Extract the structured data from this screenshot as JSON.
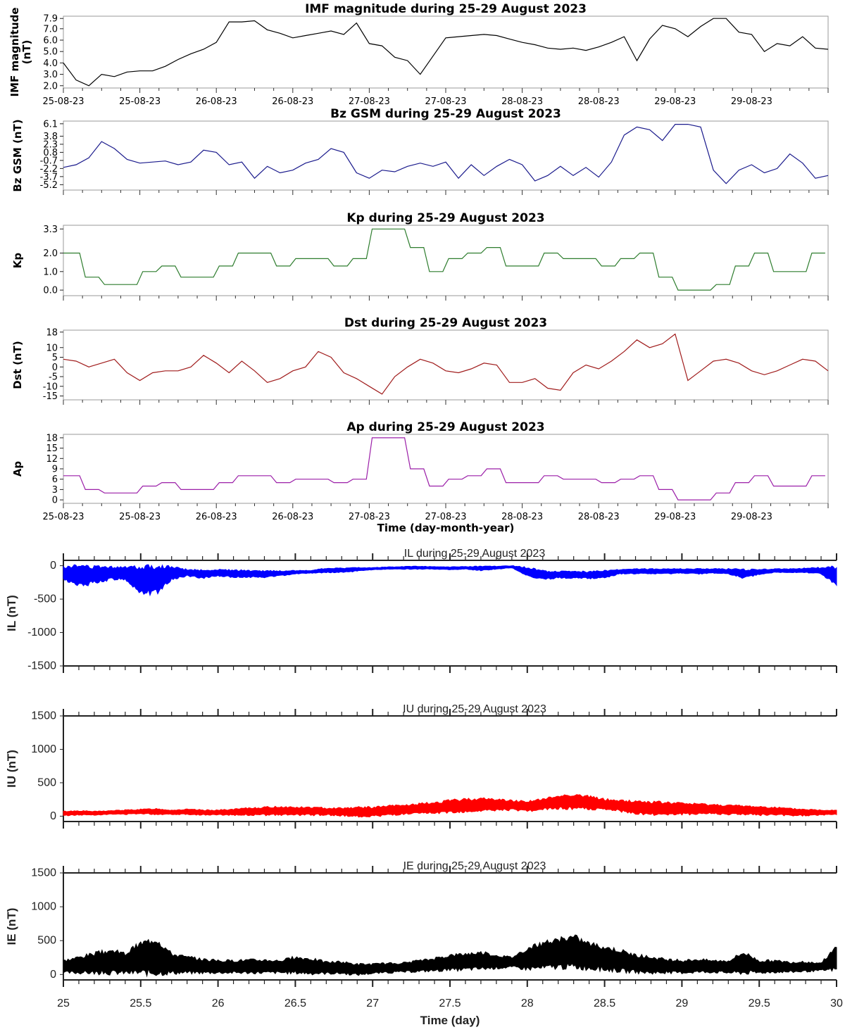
{
  "chart_data": [
    {
      "type": "line",
      "title": "IMF magnitude during 25-29 August 2023",
      "ylabel": "IMF magnitude (nT)",
      "color": "#000000",
      "yticks": [
        "2.0",
        "3.0",
        "4.0",
        "5.0",
        "6.0",
        "7.0",
        "7.9"
      ],
      "ylim": [
        1.8,
        8.1
      ],
      "x_hours": [
        0,
        2,
        4,
        6,
        8,
        10,
        12,
        14,
        16,
        18,
        20,
        22,
        24,
        26,
        28,
        30,
        32,
        34,
        36,
        38,
        40,
        42,
        44,
        46,
        48,
        50,
        52,
        54,
        56,
        58,
        60,
        62,
        64,
        66,
        68,
        70,
        72,
        74,
        76,
        78,
        80,
        82,
        84,
        86,
        88,
        90,
        92,
        94,
        96,
        98,
        100,
        102,
        104,
        106,
        108,
        110,
        112,
        114,
        116,
        118,
        120
      ],
      "values": [
        4.0,
        2.5,
        2.0,
        3.0,
        2.8,
        3.2,
        3.3,
        3.3,
        3.7,
        4.3,
        4.8,
        5.2,
        5.8,
        7.6,
        7.6,
        7.7,
        6.9,
        6.6,
        6.2,
        6.4,
        6.6,
        6.8,
        6.5,
        7.5,
        5.7,
        5.5,
        4.5,
        4.2,
        3.0,
        4.6,
        6.2,
        6.3,
        6.4,
        6.5,
        6.4,
        6.1,
        5.8,
        5.6,
        5.3,
        5.2,
        5.3,
        5.1,
        5.4,
        5.8,
        6.3,
        4.2,
        6.1,
        7.3,
        7.0,
        6.3,
        7.2,
        7.9,
        7.9,
        6.7,
        6.5,
        5.0,
        5.7,
        5.5,
        6.3,
        5.3,
        5.2
      ],
      "xtick_labels": [
        "25-08-23",
        "25-08-23",
        "26-08-23",
        "26-08-23",
        "27-08-23",
        "27-08-23",
        "28-08-23",
        "28-08-23",
        "29-08-23",
        "29-08-23"
      ]
    },
    {
      "type": "line",
      "title": "Bz GSM during 25-29 August 2023",
      "ylabel": "Bz GSM (nT)",
      "color": "#1a1a8c",
      "yticks": [
        "-5.2",
        "-3.7",
        "-2.2",
        "-0.7",
        "0.8",
        "2.3",
        "3.8",
        "6.1"
      ],
      "ytick_values": [
        -5.2,
        -3.7,
        -2.2,
        -0.7,
        0.8,
        2.3,
        3.8,
        6.1
      ],
      "ylim": [
        -6.2,
        6.6
      ],
      "x_hours": [
        0,
        2,
        4,
        6,
        8,
        10,
        12,
        14,
        16,
        18,
        20,
        22,
        24,
        26,
        28,
        30,
        32,
        34,
        36,
        38,
        40,
        42,
        44,
        46,
        48,
        50,
        52,
        54,
        56,
        58,
        60,
        62,
        64,
        66,
        68,
        70,
        72,
        74,
        76,
        78,
        80,
        82,
        84,
        86,
        88,
        90,
        92,
        94,
        96,
        98,
        100,
        102,
        104,
        106,
        108,
        110,
        112,
        114,
        116,
        118,
        120
      ],
      "values": [
        -2.0,
        -1.5,
        -0.2,
        2.8,
        1.5,
        -0.5,
        -1.2,
        -1.0,
        -0.8,
        -1.5,
        -1.0,
        1.2,
        0.8,
        -1.5,
        -1.0,
        -4.0,
        -1.8,
        -3.0,
        -2.5,
        -1.2,
        -0.5,
        1.5,
        0.8,
        -3.0,
        -4.0,
        -2.5,
        -2.8,
        -1.8,
        -1.2,
        -1.8,
        -1.0,
        -4.0,
        -1.5,
        -3.5,
        -1.8,
        -0.5,
        -1.5,
        -4.5,
        -3.5,
        -1.8,
        -3.5,
        -2.0,
        -3.8,
        -1.0,
        4.0,
        5.5,
        5.0,
        3.0,
        6.0,
        6.0,
        5.5,
        -2.5,
        -5.0,
        -2.5,
        -1.5,
        -3.0,
        -2.2,
        0.5,
        -1.2,
        -4.0,
        -3.5
      ],
      "xtick_labels": []
    },
    {
      "type": "line",
      "title": "Kp during 25-29 August 2023",
      "ylabel": "Kp",
      "color": "#2e7d2e",
      "yticks": [
        "0.0",
        "1.0",
        "2.0",
        "3.3"
      ],
      "ytick_values": [
        0.0,
        1.0,
        2.0,
        3.3
      ],
      "ylim": [
        -0.3,
        3.5
      ],
      "step_values": [
        2.0,
        0.7,
        0.3,
        0.3,
        1.0,
        1.3,
        0.7,
        0.7,
        1.3,
        2.0,
        2.0,
        1.3,
        1.7,
        1.7,
        1.3,
        1.7,
        3.3,
        3.3,
        2.3,
        1.0,
        1.7,
        2.0,
        2.3,
        1.3,
        1.3,
        2.0,
        1.7,
        1.7,
        1.3,
        1.7,
        2.0,
        0.7,
        0.0,
        0.0,
        0.3,
        1.3,
        2.0,
        1.0,
        1.0,
        2.0
      ],
      "xtick_labels": []
    },
    {
      "type": "line",
      "title": "Dst during 25-29 August 2023",
      "ylabel": "Dst (nT)",
      "color": "#a01c1c",
      "yticks": [
        "-15",
        "-10",
        "-5",
        "0",
        "5",
        "10",
        "18"
      ],
      "ytick_values": [
        -15,
        -10,
        -5,
        0,
        5,
        10,
        18
      ],
      "ylim": [
        -17,
        19
      ],
      "x_hours": [
        0,
        2,
        4,
        6,
        8,
        10,
        12,
        14,
        16,
        18,
        20,
        22,
        24,
        26,
        28,
        30,
        32,
        34,
        36,
        38,
        40,
        42,
        44,
        46,
        48,
        50,
        52,
        54,
        56,
        58,
        60,
        62,
        64,
        66,
        68,
        70,
        72,
        74,
        76,
        78,
        80,
        82,
        84,
        86,
        88,
        90,
        92,
        94,
        96,
        98,
        100,
        102,
        104,
        106,
        108,
        110,
        112,
        114,
        116,
        118,
        120
      ],
      "values": [
        4,
        3,
        0,
        2,
        4,
        -3,
        -7,
        -3,
        -2,
        -2,
        0,
        6,
        2,
        -3,
        3,
        -2,
        -8,
        -6,
        -2,
        0,
        8,
        5,
        -3,
        -6,
        -10,
        -14,
        -5,
        0,
        4,
        2,
        -2,
        -3,
        -1,
        2,
        1,
        -8,
        -8,
        -6,
        -11,
        -12,
        -3,
        1,
        -1,
        3,
        8,
        14,
        10,
        12,
        17,
        -7,
        -2,
        3,
        4,
        2,
        -2,
        -4,
        -2,
        1,
        4,
        3,
        -2
      ],
      "xtick_labels": []
    },
    {
      "type": "line",
      "title": "Ap during 25-29 August 2023",
      "ylabel": "Ap",
      "color": "#9b1fa8",
      "yticks": [
        "0",
        "3",
        "6",
        "9",
        "12",
        "15",
        "18"
      ],
      "ytick_values": [
        0,
        3,
        6,
        9,
        12,
        15,
        18
      ],
      "ylim": [
        -1,
        19
      ],
      "step_values": [
        7,
        3,
        2,
        2,
        4,
        5,
        3,
        3,
        5,
        7,
        7,
        5,
        6,
        6,
        5,
        6,
        18,
        18,
        9,
        4,
        6,
        7,
        9,
        5,
        5,
        7,
        6,
        6,
        5,
        6,
        7,
        3,
        0,
        0,
        2,
        5,
        7,
        4,
        4,
        7
      ],
      "xtick_labels": [
        "25-08-23",
        "25-08-23",
        "26-08-23",
        "26-08-23",
        "27-08-23",
        "27-08-23",
        "28-08-23",
        "28-08-23",
        "29-08-23",
        "29-08-23"
      ],
      "xlabel": "Time (day-month-year)"
    },
    {
      "type": "area",
      "title": "IL during 25-29 August 2023",
      "ylabel": "IL (nT)",
      "color": "#0000ff",
      "yticks": [
        "-1500",
        "-1000",
        "-500",
        "0"
      ],
      "ytick_values": [
        -1500,
        -1000,
        -500,
        0
      ],
      "ylim": [
        -1500,
        80
      ],
      "x": [
        25.0,
        25.1,
        25.2,
        25.3,
        25.4,
        25.5,
        25.6,
        25.7,
        25.8,
        25.9,
        26.0,
        26.1,
        26.2,
        26.3,
        26.4,
        26.5,
        26.6,
        26.7,
        26.8,
        26.9,
        27.0,
        27.1,
        27.2,
        27.3,
        27.4,
        27.5,
        27.6,
        27.7,
        27.8,
        27.9,
        28.0,
        28.1,
        28.2,
        28.3,
        28.4,
        28.5,
        28.6,
        28.7,
        28.8,
        28.9,
        29.0,
        29.1,
        29.2,
        29.3,
        29.4,
        29.5,
        29.6,
        29.7,
        29.8,
        29.9,
        30.0
      ],
      "upper": [
        -20,
        -15,
        -20,
        -20,
        -20,
        -25,
        -20,
        -25,
        -60,
        -70,
        -60,
        -70,
        -75,
        -80,
        -80,
        -75,
        -70,
        -40,
        -40,
        -30,
        -30,
        -20,
        -15,
        -10,
        -15,
        -20,
        -15,
        -10,
        -10,
        0,
        -30,
        -80,
        -90,
        -90,
        -90,
        -80,
        -60,
        -50,
        -50,
        -50,
        -50,
        -50,
        -50,
        -50,
        -60,
        -60,
        -50,
        -50,
        -40,
        -30,
        -20
      ],
      "lower": [
        -200,
        -300,
        -250,
        -200,
        -200,
        -400,
        -400,
        -200,
        -150,
        -180,
        -150,
        -170,
        -170,
        -170,
        -150,
        -120,
        -110,
        -100,
        -100,
        -80,
        -60,
        -50,
        -50,
        -50,
        -50,
        -60,
        -50,
        -70,
        -50,
        -30,
        -150,
        -200,
        -180,
        -180,
        -190,
        -180,
        -120,
        -120,
        -120,
        -120,
        -110,
        -120,
        -110,
        -120,
        -180,
        -130,
        -100,
        -100,
        -100,
        -120,
        -300
      ],
      "xtick_labels": []
    },
    {
      "type": "area",
      "title": "IU during 25-29 August 2023",
      "ylabel": "IU (nT)",
      "color": "#ff0000",
      "yticks": [
        "0",
        "500",
        "1000",
        "1500"
      ],
      "ytick_values": [
        0,
        500,
        1000,
        1500
      ],
      "ylim": [
        -80,
        1500
      ],
      "x": [
        25.0,
        25.1,
        25.2,
        25.3,
        25.4,
        25.5,
        25.6,
        25.7,
        25.8,
        25.9,
        26.0,
        26.1,
        26.2,
        26.3,
        26.4,
        26.5,
        26.6,
        26.7,
        26.8,
        26.9,
        27.0,
        27.1,
        27.2,
        27.3,
        27.4,
        27.5,
        27.6,
        27.7,
        27.8,
        27.9,
        28.0,
        28.1,
        28.2,
        28.3,
        28.4,
        28.5,
        28.6,
        28.7,
        28.8,
        28.9,
        29.0,
        29.1,
        29.2,
        29.3,
        29.4,
        29.5,
        29.6,
        29.7,
        29.8,
        29.9,
        30.0
      ],
      "upper": [
        70,
        80,
        70,
        80,
        90,
        100,
        110,
        90,
        100,
        90,
        90,
        100,
        120,
        130,
        140,
        130,
        130,
        120,
        120,
        130,
        130,
        150,
        160,
        180,
        200,
        230,
        250,
        260,
        250,
        230,
        220,
        250,
        300,
        320,
        290,
        250,
        230,
        220,
        210,
        200,
        190,
        180,
        170,
        160,
        150,
        140,
        130,
        110,
        100,
        90,
        90
      ],
      "lower": [
        10,
        20,
        20,
        30,
        30,
        40,
        30,
        30,
        30,
        20,
        20,
        20,
        20,
        20,
        20,
        20,
        20,
        20,
        10,
        0,
        0,
        20,
        30,
        40,
        50,
        60,
        70,
        80,
        90,
        100,
        80,
        100,
        120,
        120,
        110,
        100,
        80,
        40,
        30,
        30,
        30,
        40,
        40,
        30,
        30,
        20,
        20,
        10,
        10,
        20,
        30
      ],
      "xtick_labels": []
    },
    {
      "type": "area",
      "title": "IE during 25-29 August 2023",
      "ylabel": "IE (nT)",
      "color": "#000000",
      "yticks": [
        "0",
        "500",
        "1000",
        "1500"
      ],
      "ytick_values": [
        0,
        500,
        1000,
        1500
      ],
      "ylim": [
        -80,
        1500
      ],
      "x": [
        25.0,
        25.1,
        25.2,
        25.3,
        25.4,
        25.5,
        25.6,
        25.7,
        25.8,
        25.9,
        26.0,
        26.1,
        26.2,
        26.3,
        26.4,
        26.5,
        26.6,
        26.7,
        26.8,
        26.9,
        27.0,
        27.1,
        27.2,
        27.3,
        27.4,
        27.5,
        27.6,
        27.7,
        27.8,
        27.9,
        28.0,
        28.1,
        28.2,
        28.3,
        28.4,
        28.5,
        28.6,
        28.7,
        28.8,
        28.9,
        29.0,
        29.1,
        29.2,
        29.3,
        29.4,
        29.5,
        29.6,
        29.7,
        29.8,
        29.9,
        30.0
      ],
      "upper": [
        200,
        250,
        300,
        350,
        300,
        450,
        520,
        300,
        250,
        220,
        200,
        200,
        210,
        210,
        200,
        250,
        230,
        180,
        180,
        150,
        150,
        160,
        170,
        200,
        230,
        280,
        300,
        320,
        280,
        250,
        380,
        450,
        500,
        550,
        450,
        400,
        350,
        280,
        250,
        220,
        200,
        220,
        200,
        200,
        320,
        200,
        200,
        180,
        180,
        170,
        400
      ],
      "lower": [
        30,
        30,
        30,
        30,
        30,
        30,
        30,
        30,
        30,
        30,
        30,
        30,
        30,
        30,
        30,
        30,
        20,
        20,
        20,
        0,
        20,
        30,
        40,
        50,
        60,
        70,
        80,
        90,
        100,
        110,
        90,
        100,
        120,
        120,
        100,
        80,
        60,
        40,
        30,
        30,
        30,
        40,
        40,
        30,
        30,
        30,
        40,
        40,
        50,
        60,
        80
      ],
      "xtick_labels": [
        "25",
        "25.5",
        "26",
        "26.5",
        "27",
        "27.5",
        "28",
        "28.5",
        "29",
        "29.5",
        "30"
      ],
      "xlabel": "Time (day)"
    }
  ]
}
